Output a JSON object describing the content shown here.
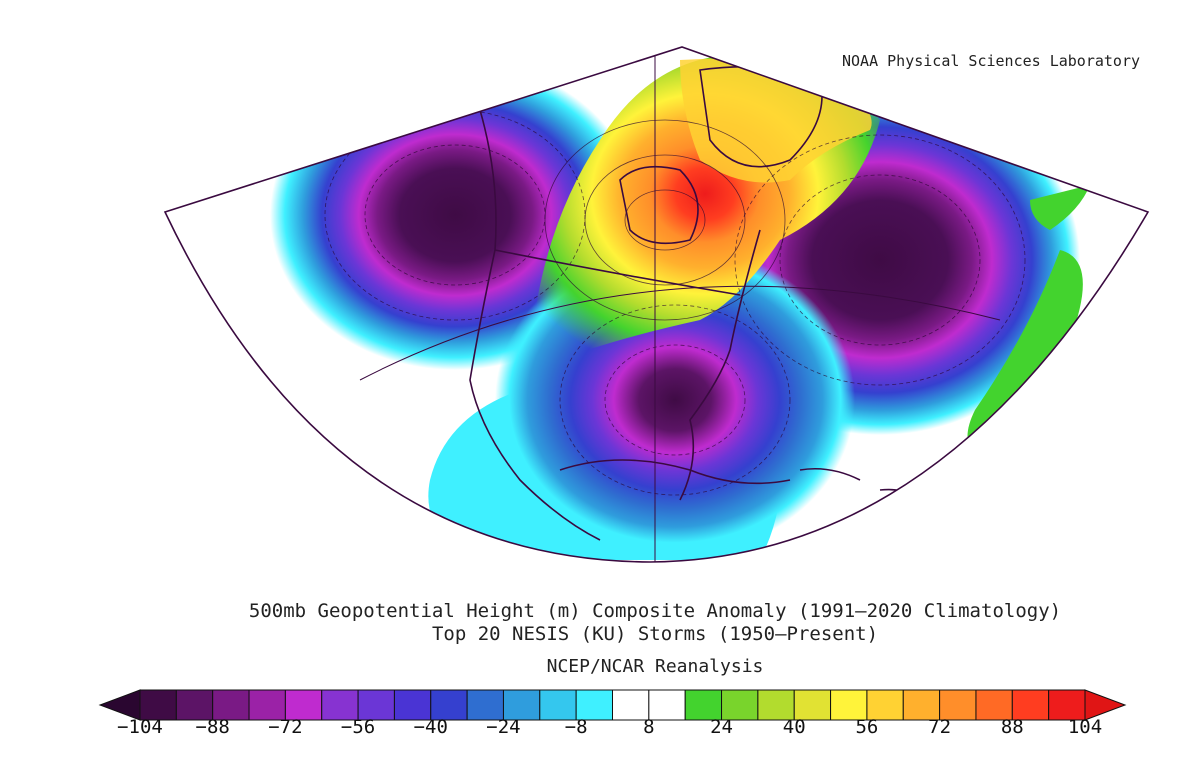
{
  "credit": "NOAA Physical Sciences Laboratory",
  "title_lines": [
    "500mb Geopotential Height (m) Composite Anomaly (1991–2020 Climatology)",
    "Top 20 NESIS (KU) Storms (1950–Present)"
  ],
  "subtitle": "NCEP/NCAR Reanalysis",
  "map_data": {
    "variable": "500mb Geopotential Height (m) Composite Anomaly",
    "features": [
      {
        "name": "negative-anomaly-northeast-pacific",
        "value": -104
      },
      {
        "name": "positive-anomaly-hudson-bay",
        "value": 104
      },
      {
        "name": "negative-anomaly-southeast-us",
        "value": -104
      },
      {
        "name": "negative-anomaly-north-atlantic",
        "value": -104
      }
    ]
  },
  "colorbar": {
    "min": -104,
    "max": 104,
    "step": 8,
    "tick_labels": [
      "−104",
      "−88",
      "−72",
      "−56",
      "−40",
      "−24",
      "−8",
      "8",
      "24",
      "40",
      "56",
      "72",
      "88",
      "104"
    ],
    "tick_values": [
      -104,
      -88,
      -72,
      -56,
      -40,
      -24,
      -8,
      8,
      24,
      40,
      56,
      72,
      88,
      104
    ],
    "colors": [
      "#3f0b45",
      "#5c1466",
      "#7a1a85",
      "#9b22a7",
      "#bf2bcf",
      "#8733d1",
      "#6b36d6",
      "#4a34d4",
      "#3540cf",
      "#2f6ed0",
      "#2f9ddd",
      "#34c7ee",
      "#3ff0ff",
      "#ffffff",
      "#ffffff",
      "#43d32e",
      "#79d42c",
      "#b2dc2e",
      "#e1e233",
      "#fff33a",
      "#ffd233",
      "#ffb02d",
      "#ff8e2a",
      "#ff6a25",
      "#ff3d20",
      "#ee1c1c"
    ],
    "end_colors": {
      "low": "#2a0630",
      "high": "#e01515"
    }
  }
}
